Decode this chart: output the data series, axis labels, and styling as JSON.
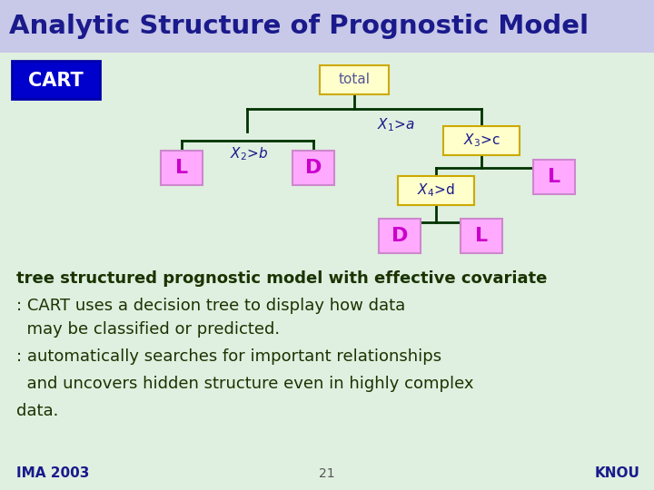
{
  "title": "Analytic Structure of Prognostic Model",
  "title_color": "#1a1a8c",
  "title_bg": "#c8c8e8",
  "bg_color": "#dff0e0",
  "cart_label": "CART",
  "cart_bg": "#0000cc",
  "cart_text_color": "#ffffff",
  "tree_edge_color": "#003300",
  "node_box_color": "#ffffcc",
  "node_box_border": "#ccaa00",
  "leaf_box_color": "#ffaaff",
  "leaf_text_color": "#cc00cc",
  "split_label_color": "#1a1a8c",
  "line1": "tree structured prognostic model with effective covariate",
  "line2": ": CART uses a decision tree to display how data",
  "line3": "  may be classified or predicted.",
  "line4": ": automatically searches for important relationships",
  "line5": "  and uncovers hidden structure even in highly complex",
  "line6": "data.",
  "footer_left": "IMA 2003",
  "footer_center": "21",
  "footer_right": "KNOU",
  "text_color_main": "#1a3300",
  "footer_color": "#1a1a8c"
}
